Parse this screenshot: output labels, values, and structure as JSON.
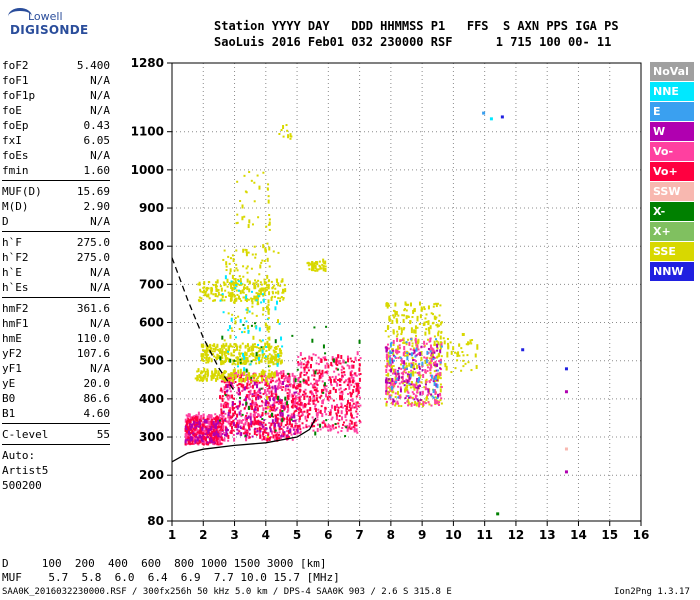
{
  "logo": {
    "line1": "Lowell",
    "line2": "DIGISONDE"
  },
  "header": {
    "line1": "Station YYYY DAY   DDD HHMMSS P1   FFS  S AXN PPS IGA PS",
    "line2": "SaoLuis 2016 Feb01 032 230000 RSF      1 715 100 00- 11"
  },
  "params": {
    "g1": [
      {
        "k": "foF2",
        "v": "5.400"
      },
      {
        "k": "foF1",
        "v": "N/A"
      },
      {
        "k": "foF1p",
        "v": "N/A"
      },
      {
        "k": "foE",
        "v": "N/A"
      },
      {
        "k": "foEp",
        "v": "0.43"
      },
      {
        "k": "fxI",
        "v": "6.05"
      },
      {
        "k": "foEs",
        "v": "N/A"
      },
      {
        "k": "fmin",
        "v": "1.60"
      }
    ],
    "g2": [
      {
        "k": "MUF(D)",
        "v": "15.69"
      },
      {
        "k": "M(D)",
        "v": "2.90"
      },
      {
        "k": "D",
        "v": "N/A"
      }
    ],
    "g3": [
      {
        "k": "h`F",
        "v": "275.0"
      },
      {
        "k": "h`F2",
        "v": "275.0"
      },
      {
        "k": "h`E",
        "v": "N/A"
      },
      {
        "k": "h`Es",
        "v": "N/A"
      }
    ],
    "g4": [
      {
        "k": "hmF2",
        "v": "361.6"
      },
      {
        "k": "hmF1",
        "v": "N/A"
      },
      {
        "k": "hmE",
        "v": "110.0"
      },
      {
        "k": "yF2",
        "v": "107.6"
      },
      {
        "k": "yF1",
        "v": "N/A"
      },
      {
        "k": "yE",
        "v": "20.0"
      },
      {
        "k": "B0",
        "v": "86.6"
      },
      {
        "k": "B1",
        "v": "4.60"
      }
    ],
    "g5": [
      {
        "k": "C-level",
        "v": "55"
      }
    ],
    "auto_lines": [
      "Auto:",
      "Artist5",
      "500200"
    ]
  },
  "footer": {
    "row_d": "D     100  200  400  600  800 1000 1500 3000 [km]",
    "row_muf": "MUF    5.7  5.8  6.0  6.4  6.9  7.7 10.0 15.7 [MHz]",
    "info": "SAA0K_2016032230000.RSF / 300fx256h 50 kHz 5.0 km / DPS-4 SAA0K 903 / 2.6 S 315.8 E",
    "version": "Ion2Png 1.3.17"
  },
  "legend": [
    {
      "label": "NoVal",
      "color": "#a0a0a0"
    },
    {
      "label": "NNE",
      "color": "#00e8ff"
    },
    {
      "label": "E",
      "color": "#3aa0f0"
    },
    {
      "label": "W",
      "color": "#b000b0"
    },
    {
      "label": "Vo-",
      "color": "#ff40a0"
    },
    {
      "label": "Vo+",
      "color": "#ff0040"
    },
    {
      "label": "SSW",
      "color": "#f8b8b0"
    },
    {
      "label": "X-",
      "color": "#008000"
    },
    {
      "label": "X+",
      "color": "#80c060"
    },
    {
      "label": "SSE",
      "color": "#d8d800"
    },
    {
      "label": "NNW",
      "color": "#2020e0"
    }
  ],
  "chart_data": {
    "type": "scatter",
    "xlim": [
      1,
      16
    ],
    "ylim": [
      80,
      1280
    ],
    "x_ticks": [
      1,
      2,
      3,
      4,
      5,
      6,
      7,
      8,
      9,
      10,
      11,
      12,
      13,
      14,
      15,
      16
    ],
    "y_ticks": [
      80,
      200,
      300,
      400,
      500,
      600,
      700,
      800,
      900,
      1000,
      1100,
      1280
    ],
    "grid": true,
    "clusters": [
      {
        "x": [
          1.4,
          2.6
        ],
        "y": [
          280,
          360
        ],
        "color": "#ff40a0",
        "n": 260
      },
      {
        "x": [
          1.4,
          2.6
        ],
        "y": [
          280,
          350
        ],
        "color": "#ff0040",
        "n": 200
      },
      {
        "x": [
          1.4,
          2.6
        ],
        "y": [
          285,
          340
        ],
        "color": "#b000b0",
        "n": 70
      },
      {
        "x": [
          2.5,
          5.0
        ],
        "y": [
          290,
          470
        ],
        "color": "#ff40a0",
        "n": 380
      },
      {
        "x": [
          2.5,
          5.0
        ],
        "y": [
          290,
          460
        ],
        "color": "#ff0040",
        "n": 300
      },
      {
        "x": [
          2.6,
          5.0
        ],
        "y": [
          300,
          440
        ],
        "color": "#b000b0",
        "n": 110
      },
      {
        "x": [
          5.0,
          7.0
        ],
        "y": [
          310,
          520
        ],
        "color": "#ff40a0",
        "n": 260
      },
      {
        "x": [
          5.0,
          7.0
        ],
        "y": [
          320,
          510
        ],
        "color": "#ff0040",
        "n": 220
      },
      {
        "x": [
          1.9,
          4.5
        ],
        "y": [
          490,
          540
        ],
        "color": "#d8d800",
        "n": 260
      },
      {
        "x": [
          1.7,
          4.3
        ],
        "y": [
          445,
          475
        ],
        "color": "#d8d800",
        "n": 150
      },
      {
        "x": [
          1.8,
          4.6
        ],
        "y": [
          655,
          710
        ],
        "color": "#d8d800",
        "n": 180
      },
      {
        "x": [
          2.6,
          4.4
        ],
        "y": [
          540,
          800
        ],
        "color": "#d8d800",
        "n": 120
      },
      {
        "x": [
          5.3,
          5.9
        ],
        "y": [
          735,
          760
        ],
        "color": "#d8d800",
        "n": 40
      },
      {
        "x": [
          7.8,
          9.6
        ],
        "y": [
          380,
          650
        ],
        "color": "#d8d800",
        "n": 340
      },
      {
        "x": [
          7.8,
          9.6
        ],
        "y": [
          380,
          560
        ],
        "color": "#ff40a0",
        "n": 200
      },
      {
        "x": [
          7.8,
          9.6
        ],
        "y": [
          390,
          540
        ],
        "color": "#b000b0",
        "n": 80
      },
      {
        "x": [
          7.8,
          9.6
        ],
        "y": [
          400,
          560
        ],
        "color": "#3aa0f0",
        "n": 50
      },
      {
        "x": [
          9.5,
          10.8
        ],
        "y": [
          470,
          560
        ],
        "color": "#d8d800",
        "n": 50
      },
      {
        "x": [
          2.5,
          4.5
        ],
        "y": [
          450,
          720
        ],
        "color": "#00e8ff",
        "n": 50
      },
      {
        "x": [
          2.5,
          7.0
        ],
        "y": [
          300,
          600
        ],
        "color": "#008000",
        "n": 60
      },
      {
        "x": [
          3.0,
          4.2
        ],
        "y": [
          850,
          1000
        ],
        "color": "#d8d800",
        "n": 25
      },
      {
        "x": [
          4.0,
          4.1
        ],
        "y": [
          300,
          1010
        ],
        "color": "#d8d800",
        "n": 35
      },
      {
        "x": [
          4.4,
          4.8
        ],
        "y": [
          1080,
          1120
        ],
        "color": "#d8d800",
        "n": 10
      }
    ],
    "points": [
      {
        "x": 10.95,
        "y": 1150,
        "color": "#3aa0f0"
      },
      {
        "x": 11.55,
        "y": 1140,
        "color": "#2020e0"
      },
      {
        "x": 11.2,
        "y": 1135,
        "color": "#00e8ff"
      },
      {
        "x": 13.6,
        "y": 480,
        "color": "#2020e0"
      },
      {
        "x": 13.6,
        "y": 420,
        "color": "#b000b0"
      },
      {
        "x": 13.6,
        "y": 270,
        "color": "#f8b8b0"
      },
      {
        "x": 13.6,
        "y": 210,
        "color": "#b000b0"
      },
      {
        "x": 11.4,
        "y": 100,
        "color": "#008000"
      },
      {
        "x": 10.3,
        "y": 570,
        "color": "#d8d800"
      },
      {
        "x": 12.2,
        "y": 530,
        "color": "#2020e0"
      }
    ],
    "trace_solid": [
      [
        1,
        235
      ],
      [
        1.5,
        258
      ],
      [
        2,
        268
      ],
      [
        3,
        278
      ],
      [
        4,
        285
      ],
      [
        5,
        300
      ],
      [
        5.4,
        320
      ],
      [
        5.6,
        350
      ]
    ],
    "trace_dashed": [
      [
        1,
        770
      ],
      [
        1.5,
        660
      ],
      [
        2,
        560
      ],
      [
        2.5,
        480
      ],
      [
        3,
        420
      ]
    ]
  }
}
